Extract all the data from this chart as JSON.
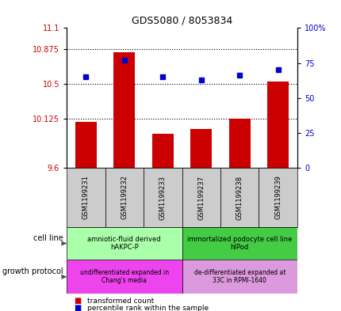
{
  "title": "GDS5080 / 8053834",
  "samples": [
    "GSM1199231",
    "GSM1199232",
    "GSM1199233",
    "GSM1199237",
    "GSM1199238",
    "GSM1199239"
  ],
  "bar_values": [
    10.09,
    10.84,
    9.97,
    10.02,
    10.125,
    10.53
  ],
  "percentile_values": [
    65,
    77,
    65,
    63,
    66,
    70
  ],
  "ylim_left": [
    9.6,
    11.1
  ],
  "ylim_right": [
    0,
    100
  ],
  "yticks_left": [
    9.6,
    10.125,
    10.5,
    10.875,
    11.1
  ],
  "ytick_labels_left": [
    "9.6",
    "10.125",
    "10.5",
    "10.875",
    "11.1"
  ],
  "yticks_right": [
    0,
    25,
    50,
    75,
    100
  ],
  "ytick_labels_right": [
    "0",
    "25",
    "50",
    "75",
    "100%"
  ],
  "hlines": [
    10.875,
    10.5,
    10.125
  ],
  "bar_color": "#cc0000",
  "dot_color": "#0000cc",
  "bar_bottom": 9.6,
  "cell_line_groups": [
    {
      "label": "amniotic-fluid derived\nhAKPC-P",
      "color": "#aaffaa",
      "start": 0,
      "end": 3
    },
    {
      "label": "immortalized podocyte cell line\nhIPod",
      "color": "#44cc44",
      "start": 3,
      "end": 6
    }
  ],
  "growth_protocol_groups": [
    {
      "label": "undifferentiated expanded in\nChang's media",
      "color": "#ee44ee",
      "start": 0,
      "end": 3
    },
    {
      "label": "de-differentiated expanded at\n33C in RPMI-1640",
      "color": "#dd88dd",
      "start": 3,
      "end": 6
    }
  ],
  "legend_items": [
    {
      "label": "transformed count",
      "color": "#cc0000"
    },
    {
      "label": "percentile rank within the sample",
      "color": "#0000cc"
    }
  ],
  "left_label_color": "#cc0000",
  "right_label_color": "#0000cc",
  "xticklabel_bg": "#cccccc",
  "left_arrow_labels": [
    "cell line",
    "growth protocol"
  ]
}
